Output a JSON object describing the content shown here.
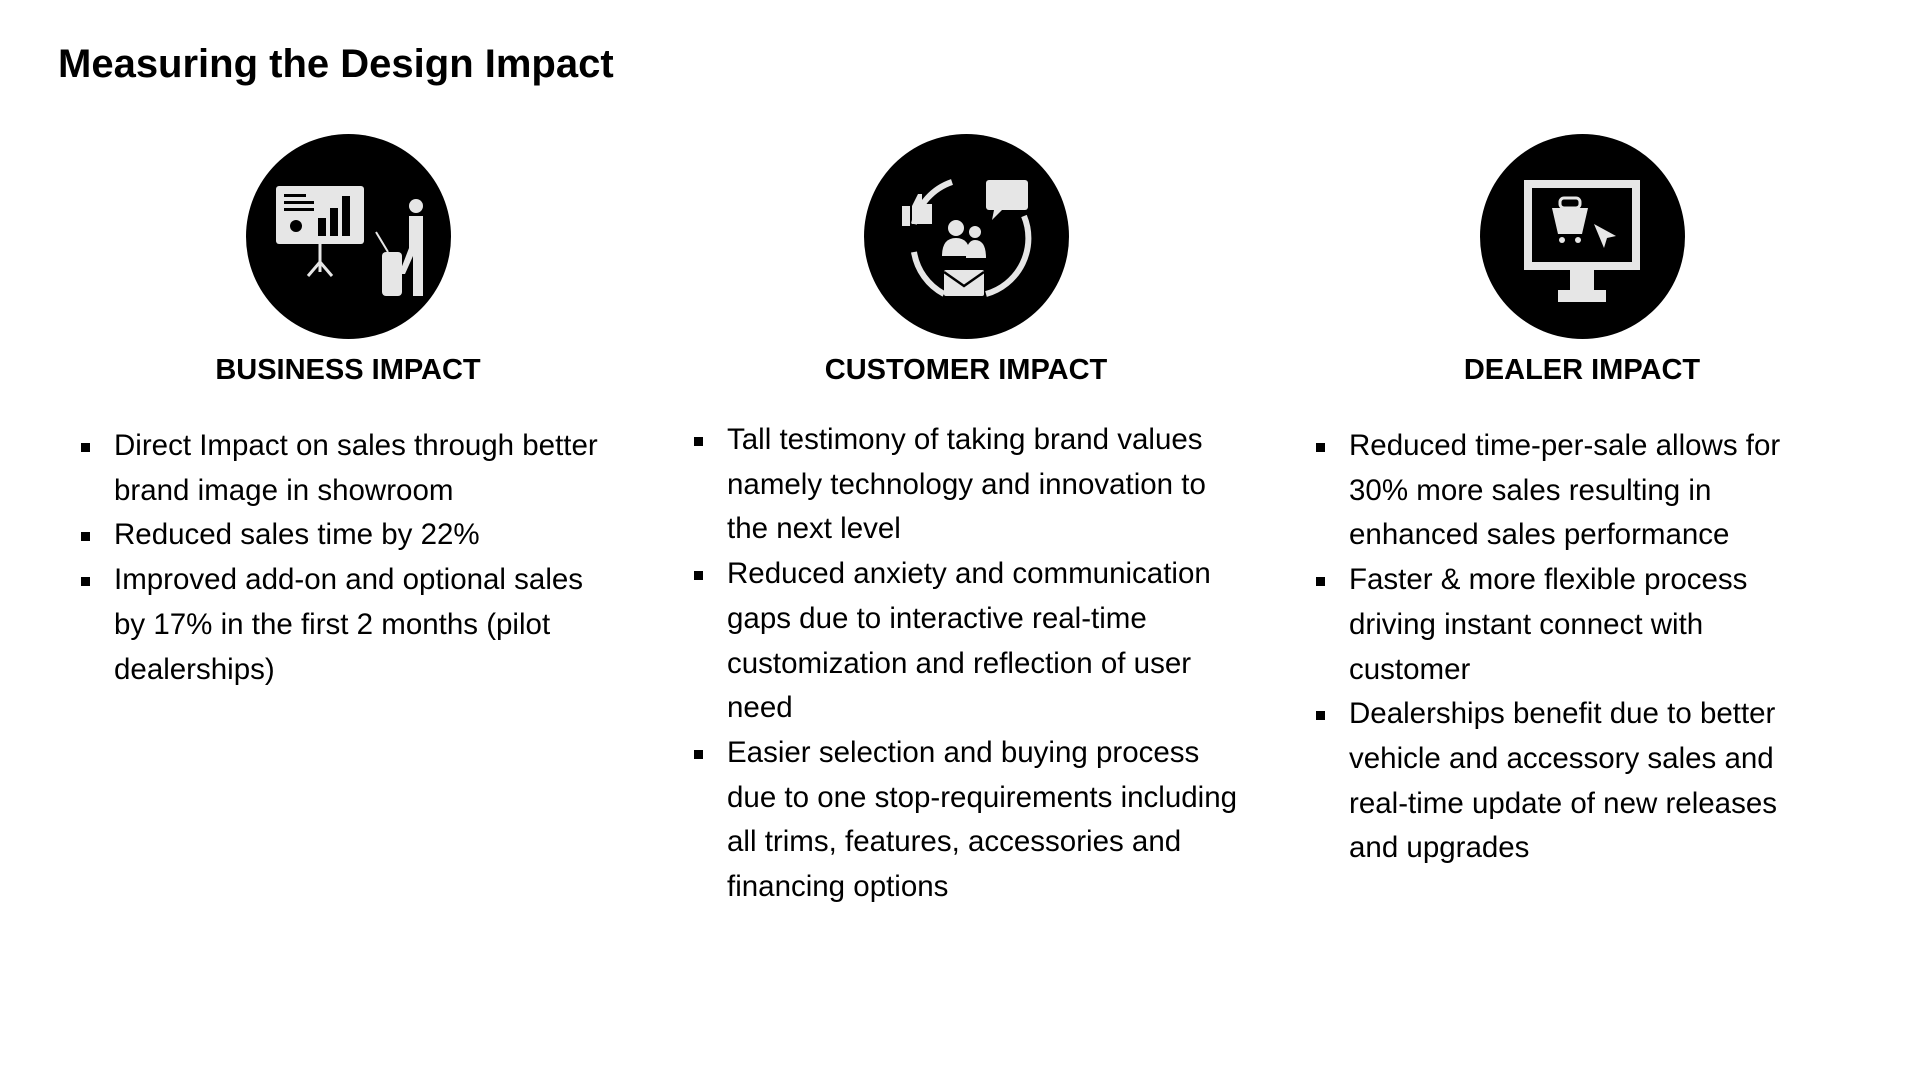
{
  "title": "Measuring the Design Impact",
  "columns": [
    {
      "icon": "presentation-icon",
      "heading": "BUSINESS IMPACT",
      "items": [
        "Direct Impact on sales through better brand image in showroom",
        "Reduced sales time by 22%",
        "Improved add-on and optional sales by 17% in the first 2 months (pilot dealerships)"
      ]
    },
    {
      "icon": "customer-communication-icon",
      "heading": "CUSTOMER IMPACT",
      "items": [
        "Tall testimony of taking brand values namely technology and innovation to the next level",
        "Reduced anxiety and communication gaps due to interactive real-time customization and reflection of user need",
        "Easier selection and buying process due to one stop-requirements including all trims, features, accessories and financing options"
      ]
    },
    {
      "icon": "monitor-shopping-cart-icon",
      "heading": "DEALER IMPACT",
      "items": [
        "Reduced time-per-sale allows for 30% more sales resulting in enhanced sales performance",
        "Faster & more flexible process driving instant connect with customer",
        "Dealerships benefit due to better vehicle and accessory sales and real-time update of new releases and upgrades"
      ]
    }
  ]
}
